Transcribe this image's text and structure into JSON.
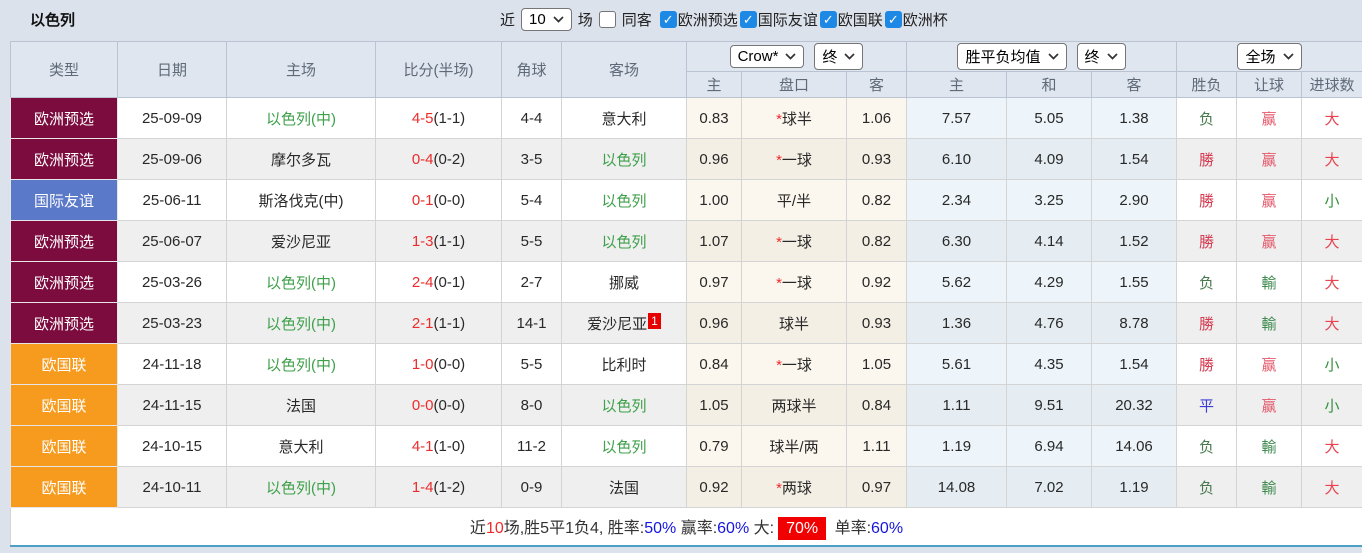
{
  "title": "以色列",
  "controls": {
    "recent_label": "近",
    "matches_value": "10",
    "matches_unit": "场",
    "same_away": {
      "label": "同客",
      "checked": false
    },
    "filters": [
      {
        "label": "欧洲预选",
        "checked": true
      },
      {
        "label": "国际友谊",
        "checked": true
      },
      {
        "label": "欧国联",
        "checked": true
      },
      {
        "label": "欧洲杯",
        "checked": true
      }
    ]
  },
  "header": {
    "col_type": "类型",
    "col_date": "日期",
    "col_home": "主场",
    "col_score": "比分(半场)",
    "col_corner": "角球",
    "col_away": "客场",
    "odds_company": "Crow*",
    "odds_time": "终",
    "wdl_metric": "胜平负均值",
    "wdl_time": "终",
    "period": "全场",
    "sub": [
      "主",
      "盘口",
      "客",
      "主",
      "和",
      "客",
      "胜负",
      "让球",
      "进球数"
    ]
  },
  "rows": [
    {
      "type": "欧洲预选",
      "type_color": "maroon",
      "date": "25-09-09",
      "home": "以色列(中)",
      "home_green": true,
      "score": "4-5",
      "half": "(1-1)",
      "corner": "4-4",
      "away": "意大利",
      "away_green": false,
      "away_badge": "",
      "odds_home": "0.83",
      "handicap": "球半",
      "handicap_star": true,
      "odds_away": "1.06",
      "avg_home": "7.57",
      "avg_draw": "5.05",
      "avg_away": "1.38",
      "result": "负",
      "result_cls": "loss",
      "let": "赢",
      "let_cls": "hwin",
      "goal": "大",
      "goal_cls": "big"
    },
    {
      "type": "欧洲预选",
      "type_color": "maroon",
      "date": "25-09-06",
      "home": "摩尔多瓦",
      "home_green": false,
      "score": "0-4",
      "half": "(0-2)",
      "corner": "3-5",
      "away": "以色列",
      "away_green": true,
      "away_badge": "",
      "odds_home": "0.96",
      "handicap": "一球",
      "handicap_star": true,
      "odds_away": "0.93",
      "avg_home": "6.10",
      "avg_draw": "4.09",
      "avg_away": "1.54",
      "result": "勝",
      "result_cls": "win",
      "let": "赢",
      "let_cls": "hwin",
      "goal": "大",
      "goal_cls": "big"
    },
    {
      "type": "国际友谊",
      "type_color": "blue",
      "date": "25-06-11",
      "home": "斯洛伐克(中)",
      "home_green": false,
      "score": "0-1",
      "half": "(0-0)",
      "corner": "5-4",
      "away": "以色列",
      "away_green": true,
      "away_badge": "",
      "odds_home": "1.00",
      "handicap": "平/半",
      "handicap_star": false,
      "odds_away": "0.82",
      "avg_home": "2.34",
      "avg_draw": "3.25",
      "avg_away": "2.90",
      "result": "勝",
      "result_cls": "win",
      "let": "赢",
      "let_cls": "hwin",
      "goal": "小",
      "goal_cls": "small"
    },
    {
      "type": "欧洲预选",
      "type_color": "maroon",
      "date": "25-06-07",
      "home": "爱沙尼亚",
      "home_green": false,
      "score": "1-3",
      "half": "(1-1)",
      "corner": "5-5",
      "away": "以色列",
      "away_green": true,
      "away_badge": "",
      "odds_home": "1.07",
      "handicap": "一球",
      "handicap_star": true,
      "odds_away": "0.82",
      "avg_home": "6.30",
      "avg_draw": "4.14",
      "avg_away": "1.52",
      "result": "勝",
      "result_cls": "win",
      "let": "赢",
      "let_cls": "hwin",
      "goal": "大",
      "goal_cls": "big"
    },
    {
      "type": "欧洲预选",
      "type_color": "maroon",
      "date": "25-03-26",
      "home": "以色列(中)",
      "home_green": true,
      "score": "2-4",
      "half": "(0-1)",
      "corner": "2-7",
      "away": "挪威",
      "away_green": false,
      "away_badge": "",
      "odds_home": "0.97",
      "handicap": "一球",
      "handicap_star": true,
      "odds_away": "0.92",
      "avg_home": "5.62",
      "avg_draw": "4.29",
      "avg_away": "1.55",
      "result": "负",
      "result_cls": "loss",
      "let": "輸",
      "let_cls": "hlose",
      "goal": "大",
      "goal_cls": "big"
    },
    {
      "type": "欧洲预选",
      "type_color": "maroon",
      "date": "25-03-23",
      "home": "以色列(中)",
      "home_green": true,
      "score": "2-1",
      "half": "(1-1)",
      "corner": "14-1",
      "away": "爱沙尼亚",
      "away_green": false,
      "away_badge": "1",
      "odds_home": "0.96",
      "handicap": "球半",
      "handicap_star": false,
      "odds_away": "0.93",
      "avg_home": "1.36",
      "avg_draw": "4.76",
      "avg_away": "8.78",
      "result": "勝",
      "result_cls": "win",
      "let": "輸",
      "let_cls": "hlose",
      "goal": "大",
      "goal_cls": "big"
    },
    {
      "type": "欧国联",
      "type_color": "orange",
      "date": "24-11-18",
      "home": "以色列(中)",
      "home_green": true,
      "score": "1-0",
      "half": "(0-0)",
      "corner": "5-5",
      "away": "比利时",
      "away_green": false,
      "away_badge": "",
      "odds_home": "0.84",
      "handicap": "一球",
      "handicap_star": true,
      "odds_away": "1.05",
      "avg_home": "5.61",
      "avg_draw": "4.35",
      "avg_away": "1.54",
      "result": "勝",
      "result_cls": "win",
      "let": "赢",
      "let_cls": "hwin",
      "goal": "小",
      "goal_cls": "small"
    },
    {
      "type": "欧国联",
      "type_color": "orange",
      "date": "24-11-15",
      "home": "法国",
      "home_green": false,
      "score": "0-0",
      "half": "(0-0)",
      "corner": "8-0",
      "away": "以色列",
      "away_green": true,
      "away_badge": "",
      "odds_home": "1.05",
      "handicap": "两球半",
      "handicap_star": false,
      "odds_away": "0.84",
      "avg_home": "1.11",
      "avg_draw": "9.51",
      "avg_away": "20.32",
      "result": "平",
      "result_cls": "draw",
      "let": "赢",
      "let_cls": "hwin",
      "goal": "小",
      "goal_cls": "small"
    },
    {
      "type": "欧国联",
      "type_color": "orange",
      "date": "24-10-15",
      "home": "意大利",
      "home_green": false,
      "score": "4-1",
      "half": "(1-0)",
      "corner": "11-2",
      "away": "以色列",
      "away_green": true,
      "away_badge": "",
      "odds_home": "0.79",
      "handicap": "球半/两",
      "handicap_star": false,
      "odds_away": "1.11",
      "avg_home": "1.19",
      "avg_draw": "6.94",
      "avg_away": "14.06",
      "result": "负",
      "result_cls": "loss",
      "let": "輸",
      "let_cls": "hlose",
      "goal": "大",
      "goal_cls": "big"
    },
    {
      "type": "欧国联",
      "type_color": "orange",
      "date": "24-10-11",
      "home": "以色列(中)",
      "home_green": true,
      "score": "1-4",
      "half": "(1-2)",
      "corner": "0-9",
      "away": "法国",
      "away_green": false,
      "away_badge": "",
      "odds_home": "0.92",
      "handicap": "两球",
      "handicap_star": true,
      "odds_away": "0.97",
      "avg_home": "14.08",
      "avg_draw": "7.02",
      "avg_away": "1.19",
      "result": "负",
      "result_cls": "loss",
      "let": "輸",
      "let_cls": "hlose",
      "goal": "大",
      "goal_cls": "big"
    }
  ],
  "footer": {
    "parts": [
      {
        "text": "近",
        "style": "plain"
      },
      {
        "text": "10",
        "style": "red"
      },
      {
        "text": "场,胜5平1负4, 胜率:",
        "style": "plain"
      },
      {
        "text": "50%",
        "style": "blue"
      },
      {
        "text": " 赢率:",
        "style": "plain"
      },
      {
        "text": "60%",
        "style": "blue"
      },
      {
        "text": " 大:",
        "style": "plain"
      },
      {
        "text": "70%",
        "style": "redbox"
      },
      {
        "text": " 单率:",
        "style": "plain"
      },
      {
        "text": "60%",
        "style": "blue"
      }
    ]
  },
  "colors": {
    "type_maroon": "#7c0b3e",
    "type_blue": "#5b79c9",
    "type_orange": "#f79b1e",
    "team_green": "#3da04a",
    "score_red": "#ee2b2b",
    "win_red": "#d43a50",
    "loss_green": "#47794d",
    "draw_blue": "#3a3ad4",
    "hwin_red": "#e4596b",
    "hlose_green": "#3f8a50",
    "big_red": "#e8434f",
    "small_green": "#33913d",
    "badge_red": "#e60000",
    "footer_pct_blue": "#1515e0",
    "footer_badge_red": "#f00000",
    "star_red": "#ee2b2b"
  }
}
